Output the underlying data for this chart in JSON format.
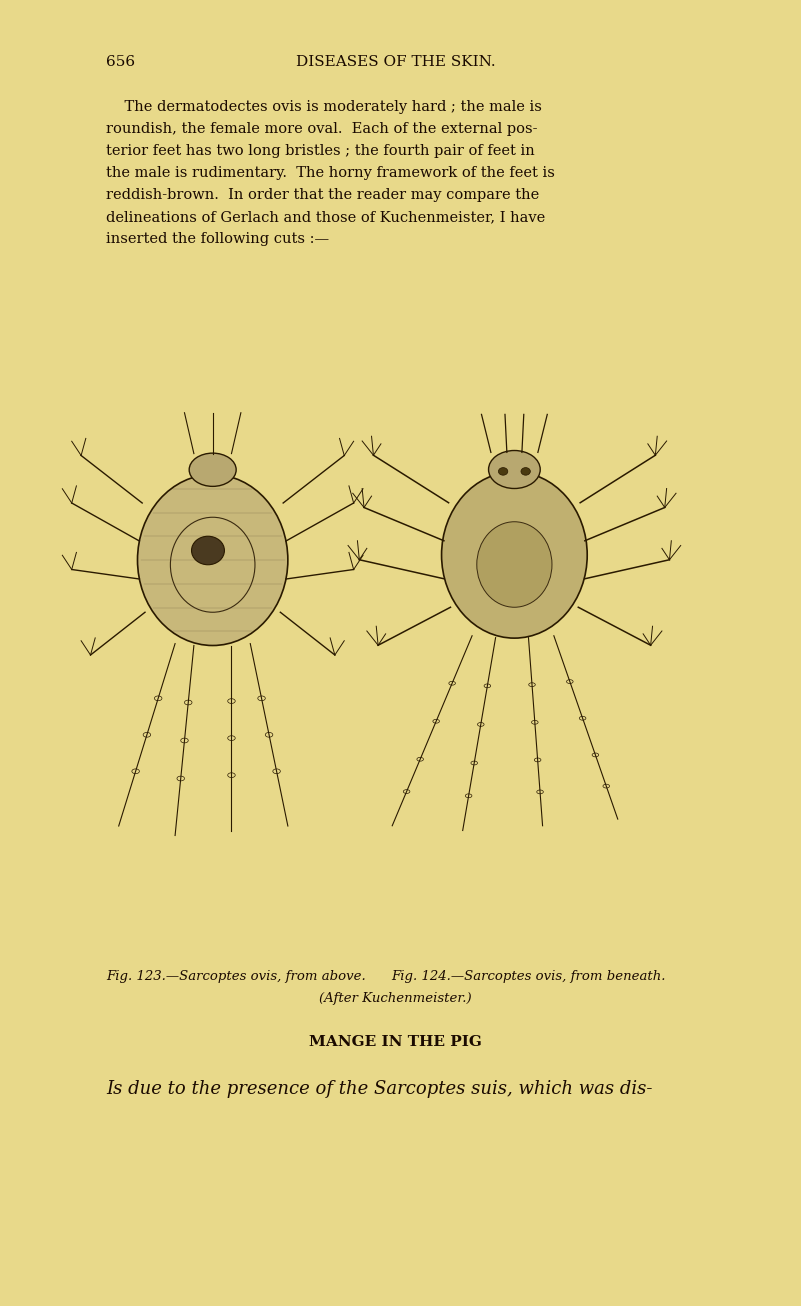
{
  "bg_color": "#e8d98a",
  "page_bg": "#d9c96e",
  "text_color": "#1a0a00",
  "page_number": "656",
  "header": "DISEASES OF THE SKIN.",
  "body_text": [
    "    The dermatodectes ovis is moderately hard ; the male is",
    "roundish, the female more oval.  Each of the external pos-",
    "terior feet has two long bristles ; the fourth pair of feet in",
    "the male is rudimentary.  The horny framework of the feet is",
    "reddish-brown.  In order that the reader may compare the",
    "delineations of Gerlach and those of Kuchenmeister, I have",
    "inserted the following cuts :—"
  ],
  "caption1": "Fig. 123.—Sarcoptes ovis, from above.",
  "caption2": "Fig. 124.—Sarcoptes ovis, from beneath.",
  "caption3": "(After Kuchenmeister.)",
  "section_title": "MANGE IN THE PIG",
  "last_line": "Is due to the presence of the Sarcoptes suis, which was dis-",
  "fig_bg": "#d9c96e"
}
